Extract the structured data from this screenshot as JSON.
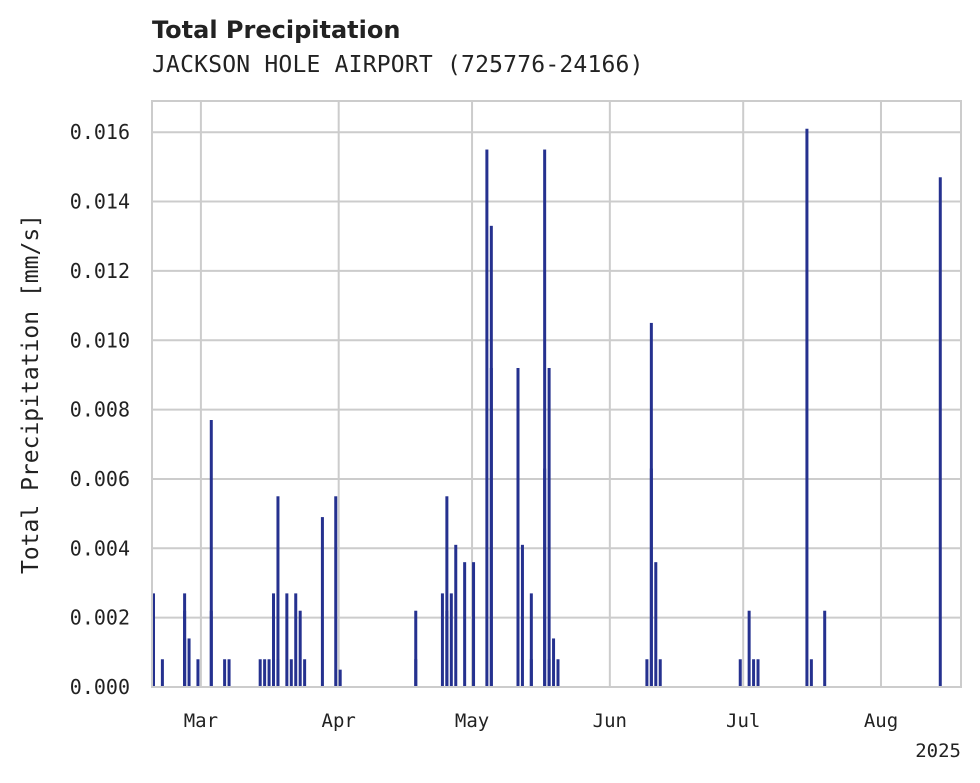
{
  "chart_data": {
    "type": "bar",
    "title": "Total Precipitation",
    "subtitle": "JACKSON HOLE AIRPORT (725776-24166)",
    "ylabel": "Total Precipitation [mm/s]",
    "xlabel": "",
    "year_label": "2025",
    "x_tick_labels": [
      "Mar",
      "Apr",
      "May",
      "Jun",
      "Jul",
      "Aug"
    ],
    "x_ticks": [
      "2025-03-01",
      "2025-04-01",
      "2025-05-01",
      "2025-06-01",
      "2025-07-01",
      "2025-08-01"
    ],
    "xlim": [
      "2025-02-18",
      "2025-08-19"
    ],
    "y_tick_labels": [
      "0.000",
      "0.002",
      "0.004",
      "0.006",
      "0.008",
      "0.010",
      "0.012",
      "0.014",
      "0.016"
    ],
    "ylim": [
      0,
      0.0169
    ],
    "grid": true,
    "color": "#25318f",
    "x": [
      "2025-02-18",
      "2025-02-18",
      "2025-02-20",
      "2025-02-25",
      "2025-02-25",
      "2025-02-25",
      "2025-02-26",
      "2025-02-28",
      "2025-03-03",
      "2025-03-03",
      "2025-03-06",
      "2025-03-07",
      "2025-03-14",
      "2025-03-15",
      "2025-03-16",
      "2025-03-17",
      "2025-03-17",
      "2025-03-18",
      "2025-03-18",
      "2025-03-20",
      "2025-03-21",
      "2025-03-22",
      "2025-03-23",
      "2025-03-24",
      "2025-03-28",
      "2025-03-31",
      "2025-04-01",
      "2025-04-18",
      "2025-04-18",
      "2025-04-24",
      "2025-04-25",
      "2025-04-25",
      "2025-04-26",
      "2025-04-27",
      "2025-04-29",
      "2025-05-01",
      "2025-05-04",
      "2025-05-05",
      "2025-05-05",
      "2025-05-11",
      "2025-05-12",
      "2025-05-14",
      "2025-05-14",
      "2025-05-17",
      "2025-05-17",
      "2025-05-18",
      "2025-05-18",
      "2025-05-19",
      "2025-05-20",
      "2025-06-09",
      "2025-06-10",
      "2025-06-10",
      "2025-06-11",
      "2025-06-12",
      "2025-06-30",
      "2025-07-02",
      "2025-07-03",
      "2025-07-04",
      "2025-07-15",
      "2025-07-16",
      "2025-07-19",
      "2025-08-14"
    ],
    "values": [
      0.0022,
      0.0027,
      0.0008,
      0.0014,
      0.0027,
      0.0022,
      0.0014,
      0.0008,
      0.0022,
      0.0077,
      0.0008,
      0.0008,
      0.0008,
      0.0008,
      0.0008,
      0.0027,
      0.0008,
      0.0055,
      0.0008,
      0.0027,
      0.0008,
      0.0027,
      0.0022,
      0.0008,
      0.0049,
      0.0055,
      0.0005,
      0.0022,
      0.0008,
      0.0027,
      0.0055,
      0.0022,
      0.0027,
      0.0041,
      0.0036,
      0.0036,
      0.0155,
      0.0133,
      0.0092,
      0.0092,
      0.0041,
      0.0027,
      0.0008,
      0.0063,
      0.0155,
      0.0092,
      0.0008,
      0.0014,
      0.0008,
      0.0008,
      0.0105,
      0.0063,
      0.0036,
      0.0008,
      0.0008,
      0.0022,
      0.0008,
      0.0008,
      0.0161,
      0.0008,
      0.0022,
      0.0147
    ]
  }
}
